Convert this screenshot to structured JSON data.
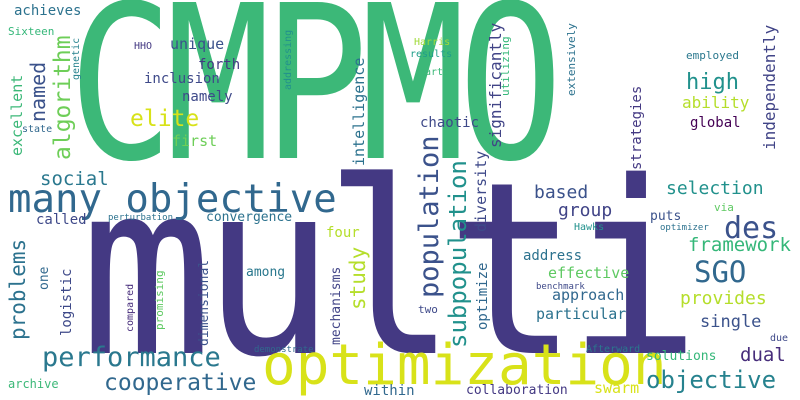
{
  "words": {
    "cmpmo": {
      "text": "CMPMO",
      "color": "#3cb878"
    },
    "multi": {
      "text": "multi",
      "color": "#443983"
    },
    "optimization": {
      "text": "optimization",
      "color": "#d8e219"
    },
    "many_objective": {
      "text": "many objective",
      "color": "#31688e"
    },
    "performance": {
      "text": "performance",
      "color": "#2a788e"
    },
    "cooperative": {
      "text": "cooperative",
      "color": "#31688e"
    },
    "objective_lower": {
      "text": "objective",
      "color": "#26828e"
    },
    "sgo": {
      "text": "SGO",
      "color": "#31688e"
    },
    "des": {
      "text": "des",
      "color": "#3b528b"
    },
    "framework": {
      "text": "framework",
      "color": "#35b779"
    },
    "selection": {
      "text": "selection",
      "color": "#21918c"
    },
    "provides": {
      "text": "provides",
      "color": "#b5de2b"
    },
    "elite": {
      "text": "elite",
      "color": "#d8e219"
    },
    "high": {
      "text": "high",
      "color": "#21918c"
    },
    "dual": {
      "text": "dual",
      "color": "#472d7b"
    },
    "single": {
      "text": "single",
      "color": "#3b528b"
    },
    "group": {
      "text": "group",
      "color": "#414487"
    },
    "based": {
      "text": "based",
      "color": "#3b528b"
    },
    "approach": {
      "text": "approach",
      "color": "#31688e"
    },
    "particular": {
      "text": "particular",
      "color": "#2c728e"
    },
    "effective": {
      "text": "effective",
      "color": "#5ec962"
    },
    "address": {
      "text": "address",
      "color": "#2c728e"
    },
    "social": {
      "text": "social",
      "color": "#2a788e"
    },
    "unique": {
      "text": "unique",
      "color": "#3b528b"
    },
    "inclusion": {
      "text": "inclusion",
      "color": "#3e4989"
    },
    "namely": {
      "text": "namely",
      "color": "#3e4989"
    },
    "forth": {
      "text": "forth",
      "color": "#443983"
    },
    "first": {
      "text": "first",
      "color": "#6ece58"
    },
    "achieves": {
      "text": "achieves",
      "color": "#2c728e"
    },
    "sixteen": {
      "text": "Sixteen",
      "color": "#35b779"
    },
    "hho": {
      "text": "HHO",
      "color": "#443983"
    },
    "chaotic": {
      "text": "chaotic",
      "color": "#3e4989"
    },
    "ability": {
      "text": "ability",
      "color": "#b5de2b"
    },
    "global": {
      "text": "global",
      "color": "#440154"
    },
    "employed": {
      "text": "employed",
      "color": "#2a788e"
    },
    "convergence": {
      "text": "convergence",
      "color": "#2c728e"
    },
    "called": {
      "text": "called",
      "color": "#3e4989"
    },
    "among": {
      "text": "among",
      "color": "#2a788e"
    },
    "four": {
      "text": "four",
      "color": "#b5de2b"
    },
    "puts": {
      "text": "puts",
      "color": "#3b528b"
    },
    "via": {
      "text": "via",
      "color": "#5ec962"
    },
    "hawks": {
      "text": "Hawks",
      "color": "#21918c"
    },
    "optimizer": {
      "text": "optimizer",
      "color": "#2c728e"
    },
    "harris": {
      "text": "Harris",
      "color": "#a0da39"
    },
    "results": {
      "text": "results",
      "color": "#1f9e89"
    },
    "art": {
      "text": "art",
      "color": "#3cb878"
    },
    "state": {
      "text": "state",
      "color": "#31688e"
    },
    "perturbation": {
      "text": "perturbation",
      "color": "#2c728e"
    },
    "demonstrate": {
      "text": "demonstrate",
      "color": "#31688e"
    },
    "afterward": {
      "text": "Afterward",
      "color": "#2a788e"
    },
    "solutions": {
      "text": "solutions",
      "color": "#35b779"
    },
    "collaboration": {
      "text": "collaboration",
      "color": "#443983"
    },
    "within": {
      "text": "within",
      "color": "#31688e"
    },
    "swarm": {
      "text": "swarm",
      "color": "#d8e219"
    },
    "archive": {
      "text": "archive",
      "color": "#3cb878"
    },
    "due": {
      "text": "due",
      "color": "#3e4989"
    },
    "two": {
      "text": "two",
      "color": "#3e4989"
    },
    "benchmark": {
      "text": "benchmark",
      "color": "#3e4989"
    },
    "population": {
      "text": "population",
      "color": "#3b528b"
    },
    "subpopulation": {
      "text": "subpopulation",
      "color": "#21918c"
    },
    "study": {
      "text": "study",
      "color": "#b5de2b"
    },
    "algorithm": {
      "text": "algorithm",
      "color": "#6ece58"
    },
    "named": {
      "text": "named",
      "color": "#3b528b"
    },
    "problems": {
      "text": "problems",
      "color": "#2c728e"
    },
    "excellent": {
      "text": "excellent",
      "color": "#3cb878"
    },
    "one": {
      "text": "one",
      "color": "#31688e"
    },
    "logistic": {
      "text": "logistic",
      "color": "#3e4989"
    },
    "compared": {
      "text": "compared",
      "color": "#472d7b"
    },
    "promising": {
      "text": "promising",
      "color": "#5ec962"
    },
    "dimensional": {
      "text": "dimensional",
      "color": "#3b528b"
    },
    "mechanisms": {
      "text": "mechanisms",
      "color": "#414487"
    },
    "intelligence": {
      "text": "intelligence",
      "color": "#2c728e"
    },
    "addressing": {
      "text": "addressing",
      "color": "#21918c"
    },
    "genetic": {
      "text": "genetic",
      "color": "#26828e"
    },
    "significantly": {
      "text": "significantly",
      "color": "#414487"
    },
    "utilizing": {
      "text": "utilizing",
      "color": "#35b779"
    },
    "diversity": {
      "text": "diversity",
      "color": "#3e4989"
    },
    "optimize": {
      "text": "optimize",
      "color": "#31688e"
    },
    "strategies": {
      "text": "strategies",
      "color": "#443983"
    },
    "extensively": {
      "text": "extensively",
      "color": "#2c728e"
    },
    "independently": {
      "text": "independently",
      "color": "#414487"
    }
  }
}
